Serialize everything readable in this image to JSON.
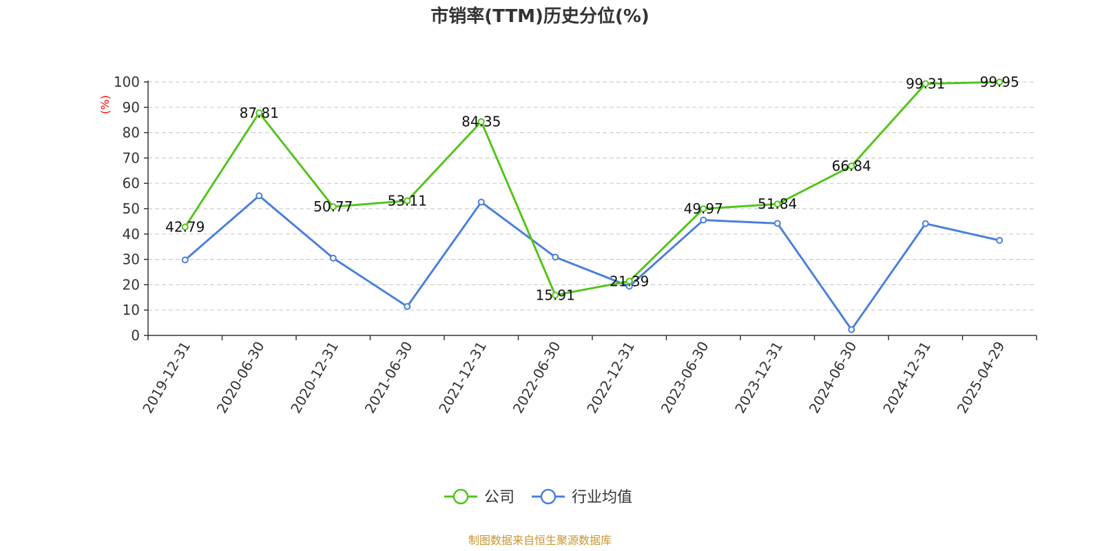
{
  "colors": {
    "company": "#52c41a",
    "industry": "#4a7fdc",
    "axis": "#333333",
    "grid": "#cccccc",
    "ylabel": "#ff0000",
    "source": "#c8962e"
  },
  "chart_data": {
    "type": "line",
    "title": "市销率(TTM)历史分位(%)",
    "ylabel": "(%)",
    "ylim": [
      0,
      100
    ],
    "yticks": [
      0,
      10,
      20,
      30,
      40,
      50,
      60,
      70,
      80,
      90,
      100
    ],
    "grid": true,
    "legend_position": "bottom-center",
    "categories": [
      "2019-12-31",
      "2020-06-30",
      "2020-12-31",
      "2021-06-30",
      "2021-12-31",
      "2022-06-30",
      "2022-12-31",
      "2023-06-30",
      "2023-12-31",
      "2024-06-30",
      "2024-12-31",
      "2025-04-29"
    ],
    "series": [
      {
        "name": "公司",
        "values": [
          42.79,
          87.81,
          50.77,
          53.11,
          84.35,
          15.91,
          21.39,
          49.97,
          51.84,
          66.84,
          99.31,
          99.95
        ],
        "labels": [
          "42.79",
          "87.81",
          "50.77",
          "53.11",
          "84.35",
          "15.91",
          "21.39",
          "49.97",
          "51.84",
          "66.84",
          "99.31",
          "99.95"
        ],
        "show_labels": true
      },
      {
        "name": "行业均值",
        "values": [
          29.8,
          55.1,
          30.5,
          11.4,
          52.6,
          30.9,
          19.4,
          45.5,
          44.2,
          2.3,
          44.1,
          37.5
        ],
        "show_labels": false
      }
    ]
  },
  "source_text": "制图数据来自恒生聚源数据库"
}
